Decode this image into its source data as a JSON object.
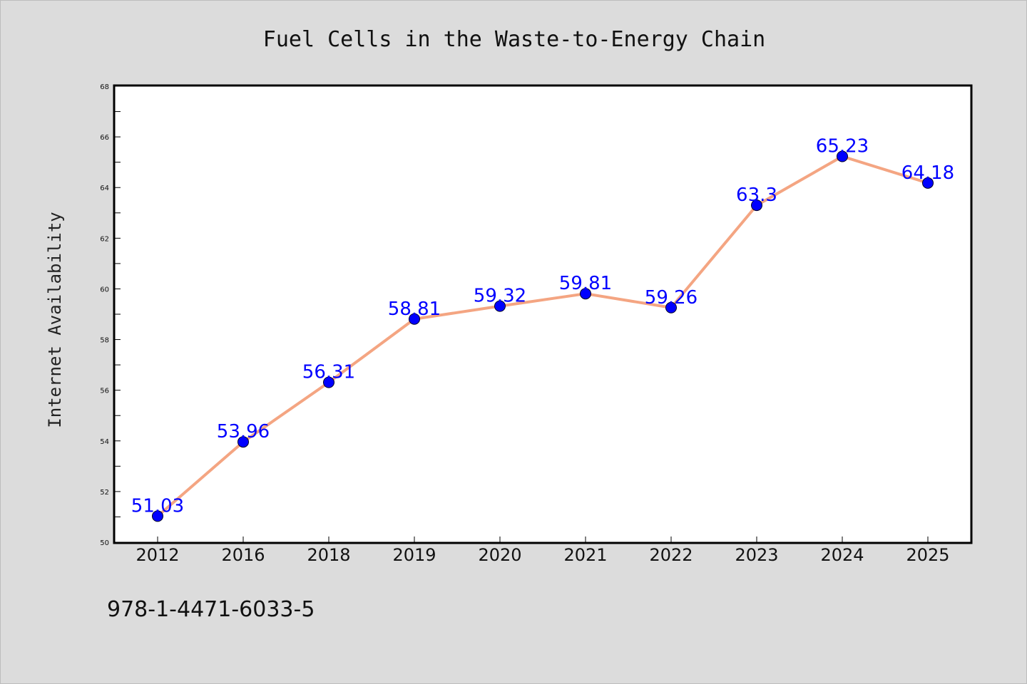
{
  "chart_data": {
    "type": "line",
    "title": "Fuel Cells in the Waste-to-Energy Chain",
    "xlabel": "",
    "ylabel": "Internet Availability",
    "categories": [
      "2012",
      "2016",
      "2018",
      "2019",
      "2020",
      "2021",
      "2022",
      "2023",
      "2024",
      "2025"
    ],
    "series": [
      {
        "values": [
          51.03,
          53.96,
          56.31,
          58.81,
          59.32,
          59.81,
          59.26,
          63.3,
          65.23,
          64.18
        ],
        "labels": [
          "51.03",
          "53.96",
          "56.31",
          "58.81",
          "59.32",
          "59.81",
          "59.26",
          "63.3",
          "65.23",
          "64.18"
        ],
        "line_color": "#f4a582",
        "marker_color": "#0000ff"
      }
    ],
    "ylim": [
      50,
      68
    ],
    "yticks": [
      50,
      52,
      54,
      56,
      58,
      60,
      62,
      64,
      66,
      68
    ],
    "ytick_labels": [
      "50",
      "52",
      "54",
      "56",
      "58",
      "60",
      "62",
      "64",
      "66",
      "68"
    ],
    "grid": false,
    "legend": "none"
  },
  "footer": {
    "isbn": "978-1-4471-6033-5"
  },
  "colors": {
    "background": "#dcdcdc",
    "plot_background": "#ffffff",
    "line": "#f4a582",
    "marker": "#0000ff",
    "data_label": "#0000ff"
  }
}
